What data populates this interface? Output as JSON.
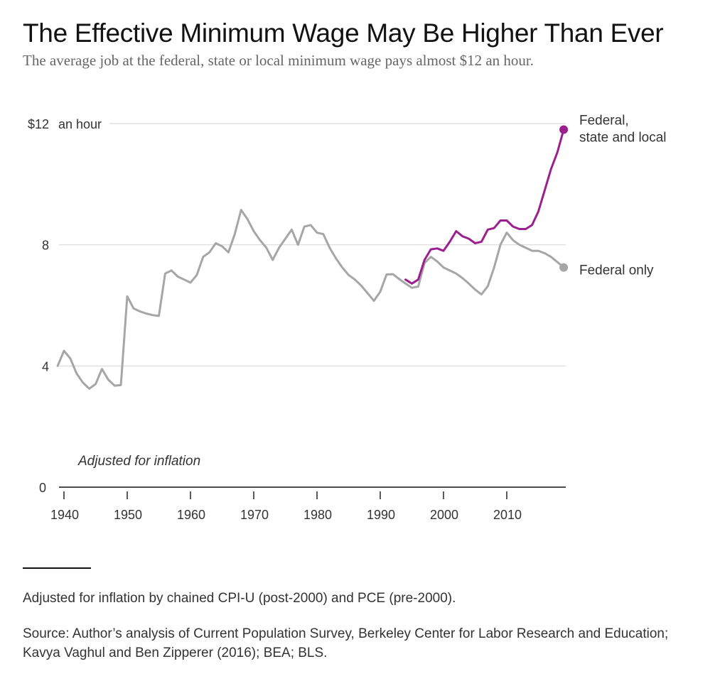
{
  "title": "The Effective Minimum Wage May Be Higher Than Ever",
  "subtitle": "The average job at the federal, state or local minimum wage pays almost $12 an hour.",
  "chart_data": {
    "type": "line",
    "title": "The Effective Minimum Wage May Be Higher Than Ever",
    "subtitle": "The average job at the federal, state or local minimum wage pays almost $12 an hour.",
    "xlabel": "",
    "ylabel": "an hour",
    "ylim": [
      0,
      12
    ],
    "xlim": [
      1939,
      2019
    ],
    "y_ticks": [
      {
        "value": 12,
        "label": "$12"
      },
      {
        "value": 8,
        "label": "8"
      },
      {
        "value": 4,
        "label": "4"
      },
      {
        "value": 0,
        "label": "0"
      }
    ],
    "y_unit_label": "an hour",
    "x_ticks": [
      {
        "value": 1940,
        "label": "1940"
      },
      {
        "value": 1950,
        "label": "1950"
      },
      {
        "value": 1960,
        "label": "1960"
      },
      {
        "value": 1970,
        "label": "1970"
      },
      {
        "value": 1980,
        "label": "1980"
      },
      {
        "value": 1990,
        "label": "1990"
      },
      {
        "value": 2000,
        "label": "2000"
      },
      {
        "value": 2010,
        "label": "2010"
      }
    ],
    "gridlines": true,
    "annotation": "Adjusted for inflation",
    "series": [
      {
        "name": "Federal only",
        "label": "Federal only",
        "color": "#a6a6a6",
        "x": [
          1939,
          1940,
          1941,
          1942,
          1943,
          1944,
          1945,
          1946,
          1947,
          1948,
          1949,
          1950,
          1951,
          1952,
          1953,
          1954,
          1955,
          1956,
          1957,
          1958,
          1959,
          1960,
          1961,
          1962,
          1963,
          1964,
          1965,
          1966,
          1967,
          1968,
          1969,
          1970,
          1971,
          1972,
          1973,
          1974,
          1975,
          1976,
          1977,
          1978,
          1979,
          1980,
          1981,
          1982,
          1983,
          1984,
          1985,
          1986,
          1987,
          1988,
          1989,
          1990,
          1991,
          1992,
          1993,
          1994,
          1995,
          1996,
          1997,
          1998,
          1999,
          2000,
          2001,
          2002,
          2003,
          2004,
          2005,
          2006,
          2007,
          2008,
          2009,
          2010,
          2011,
          2012,
          2013,
          2014,
          2015,
          2016,
          2017,
          2018,
          2019
        ],
        "values": [
          4.0,
          4.5,
          4.25,
          3.75,
          3.45,
          3.25,
          3.4,
          3.9,
          3.55,
          3.35,
          3.37,
          6.3,
          5.9,
          5.8,
          5.73,
          5.68,
          5.65,
          7.05,
          7.15,
          6.95,
          6.85,
          6.75,
          7.0,
          7.6,
          7.75,
          8.05,
          7.95,
          7.75,
          8.35,
          9.15,
          8.85,
          8.45,
          8.15,
          7.9,
          7.5,
          7.9,
          8.2,
          8.5,
          8.0,
          8.6,
          8.65,
          8.4,
          8.35,
          7.9,
          7.55,
          7.25,
          7.0,
          6.85,
          6.65,
          6.4,
          6.15,
          6.45,
          7.02,
          7.03,
          6.87,
          6.72,
          6.58,
          6.62,
          7.4,
          7.6,
          7.45,
          7.25,
          7.15,
          7.05,
          6.9,
          6.72,
          6.52,
          6.36,
          6.63,
          7.25,
          8.0,
          8.4,
          8.15,
          8.0,
          7.9,
          7.8,
          7.8,
          7.72,
          7.6,
          7.43,
          7.25
        ]
      },
      {
        "name": "Federal, state and local",
        "label": [
          "Federal,",
          "state and local"
        ],
        "color": "#9b1f8e",
        "x": [
          1994,
          1995,
          1996,
          1997,
          1998,
          1999,
          2000,
          2001,
          2002,
          2003,
          2004,
          2005,
          2006,
          2007,
          2008,
          2009,
          2010,
          2011,
          2012,
          2013,
          2014,
          2015,
          2016,
          2017,
          2018,
          2019
        ],
        "values": [
          6.85,
          6.72,
          6.85,
          7.5,
          7.85,
          7.88,
          7.8,
          8.1,
          8.45,
          8.28,
          8.2,
          8.05,
          8.1,
          8.5,
          8.55,
          8.8,
          8.8,
          8.6,
          8.52,
          8.52,
          8.65,
          9.1,
          9.8,
          10.5,
          11.05,
          11.8
        ]
      }
    ]
  },
  "footnote": "Adjusted for inflation by chained CPI-U (post-2000) and PCE (pre-2000).",
  "source": "Source: Author’s analysis of Current Population Survey, Berkeley Center for Labor Research and Education; Kavya Vaghul and Ben Zipperer (2016); BEA; BLS."
}
